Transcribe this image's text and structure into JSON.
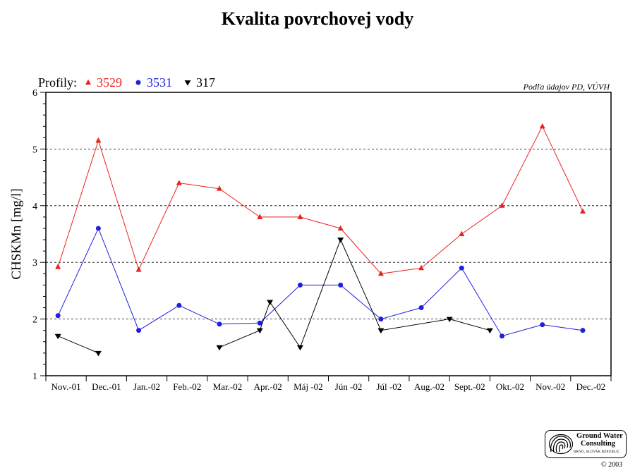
{
  "chart_data": {
    "type": "line",
    "title": "Kvalita povrchovej vody",
    "ylabel": "CHSKMn [mg/l]",
    "xlabel": "",
    "ylim": [
      1,
      6
    ],
    "yticks": [
      "1",
      "2",
      "3",
      "4",
      "5",
      "6"
    ],
    "grid": "horizontal dashed",
    "legend_title": "Profily:",
    "legend_placement": "top-left",
    "source_note": "Podľa údajov PD, VÚVH",
    "categories": [
      "Nov.-01",
      "Dec.-01",
      "Jan.-02",
      "Feb.-02",
      "Mar.-02",
      "Apr.-02",
      "Máj -02",
      "Jún -02",
      "Júl -02",
      "Aug.-02",
      "Sept.-02",
      "Okt.-02",
      "Nov.-02",
      "Dec.-02"
    ],
    "series": [
      {
        "name": "3529",
        "color": "#e8231e",
        "marker": "triangle-up",
        "points": [
          [
            0.3,
            2.92
          ],
          [
            1.3,
            5.15
          ],
          [
            2.3,
            2.87
          ],
          [
            3.3,
            4.4
          ],
          [
            4.3,
            4.3
          ],
          [
            5.3,
            3.8
          ],
          [
            6.3,
            3.8
          ],
          [
            7.3,
            3.6
          ],
          [
            8.3,
            2.8
          ],
          [
            9.3,
            2.9
          ],
          [
            10.3,
            3.5
          ],
          [
            11.3,
            4.0
          ],
          [
            12.3,
            5.4
          ],
          [
            13.3,
            3.9
          ]
        ]
      },
      {
        "name": "3531",
        "color": "#1f1fe0",
        "marker": "circle",
        "points": [
          [
            0.3,
            2.06
          ],
          [
            1.3,
            3.6
          ],
          [
            2.3,
            1.8
          ],
          [
            3.3,
            2.24
          ],
          [
            4.3,
            1.91
          ],
          [
            5.3,
            1.93
          ],
          [
            6.3,
            2.6
          ],
          [
            7.3,
            2.6
          ],
          [
            8.3,
            2.0
          ],
          [
            9.3,
            2.2
          ],
          [
            10.3,
            2.9
          ],
          [
            11.3,
            1.7
          ],
          [
            12.3,
            1.9
          ],
          [
            13.3,
            1.8
          ]
        ]
      },
      {
        "name": "317",
        "color": "#000000",
        "marker": "triangle-down",
        "segments": [
          [
            [
              0.3,
              1.7
            ],
            [
              1.3,
              1.4
            ]
          ],
          [
            [
              4.3,
              1.5
            ],
            [
              5.3,
              1.8
            ],
            [
              5.55,
              2.3
            ],
            [
              6.3,
              1.5
            ],
            [
              7.3,
              3.4
            ],
            [
              8.3,
              1.8
            ],
            [
              10.0,
              2.0
            ],
            [
              11.0,
              1.8
            ]
          ]
        ]
      }
    ]
  },
  "logo": {
    "line1": "Ground Water",
    "line2": "Consulting",
    "line3": "BRNO, SLOVAK REPUBLIC",
    "icon": "fingerprint-swirl-icon"
  },
  "copyright": "© 2003"
}
